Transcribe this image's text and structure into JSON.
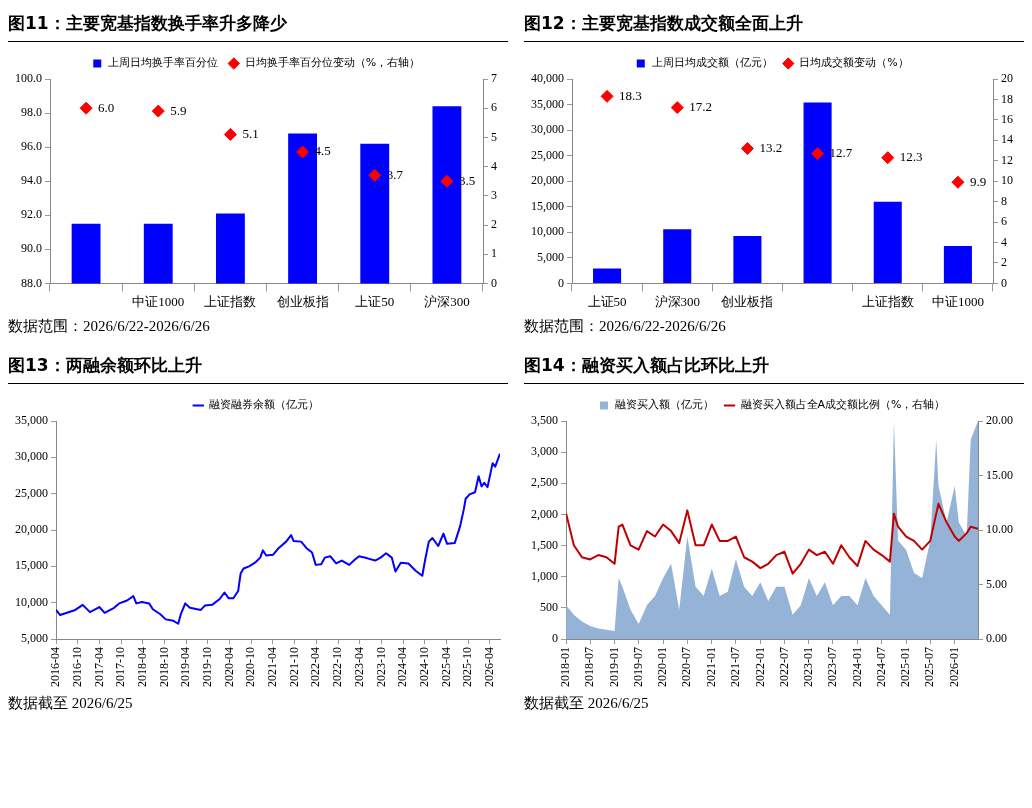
{
  "chart_data": [
    {
      "type": "bar",
      "title": "图11：主要宽基指数换手率升多降少",
      "categories": [
        null,
        "中证1000",
        "上证指数",
        "创业板指",
        "上证50",
        "沪深300"
      ],
      "series": [
        {
          "name": "上周日均换手率百分位",
          "color": "#0000ff",
          "values": [
            91.5,
            91.5,
            92.1,
            96.8,
            96.2,
            98.4
          ]
        },
        {
          "name": "日均换手率百分位变动（%，右轴）",
          "color": "#ff0000",
          "type": "scatter",
          "axis": "y2",
          "values": [
            6.0,
            5.9,
            5.1,
            4.5,
            3.7,
            3.5
          ],
          "value_labels": [
            "6.0",
            "5.9",
            "5.1",
            "4.5",
            "3.7",
            "3.5"
          ]
        }
      ],
      "ylim": [
        88,
        100
      ],
      "yticks": [
        {
          "value": 88,
          "label": "88.0"
        },
        {
          "value": 90,
          "label": "90.0"
        },
        {
          "value": 92,
          "label": "92.0"
        },
        {
          "value": 94,
          "label": "94.0"
        },
        {
          "value": 96,
          "label": "96.0"
        },
        {
          "value": 98,
          "label": "98.0"
        },
        {
          "value": 100,
          "label": "100.0"
        }
      ],
      "y2lim": [
        0,
        7
      ],
      "y2ticks": [
        {
          "value": 0,
          "label": "0"
        },
        1,
        2,
        3,
        4,
        5,
        6,
        7
      ],
      "marker": "diamond",
      "legend": "top",
      "grid": false,
      "annotations": [
        "数据范围：2026/6/22-2026/6/26"
      ]
    },
    {
      "type": "bar",
      "title": "图12：主要宽基指数成交额全面上升",
      "categories": [
        "上证50",
        "沪深300",
        "创业板指",
        null,
        "上证指数",
        "中证1000"
      ],
      "series": [
        {
          "name": "上周日均成交额（亿元）",
          "color": "#0000ff",
          "values": [
            2900,
            10600,
            9300,
            35400,
            16000,
            7300
          ]
        },
        {
          "name": "日均成交额变动（%）",
          "color": "#ff0000",
          "type": "scatter",
          "axis": "y2",
          "values": [
            18.3,
            17.2,
            13.2,
            12.7,
            12.3,
            9.9
          ],
          "value_labels": [
            "18.3",
            "17.2",
            "13.2",
            "12.7",
            "12.3",
            "9.9"
          ]
        }
      ],
      "ylim": [
        0,
        40000
      ],
      "yticks": [
        {
          "value": 0,
          "label": "0"
        },
        {
          "value": 5000,
          "label": "5,000"
        },
        {
          "value": 10000,
          "label": "10,000"
        },
        {
          "value": 15000,
          "label": "15,000"
        },
        {
          "value": 20000,
          "label": "20,000"
        },
        {
          "value": 25000,
          "label": "25,000"
        },
        {
          "value": 30000,
          "label": "30,000"
        },
        {
          "value": 35000,
          "label": "35,000"
        },
        {
          "value": 40000,
          "label": "40,000"
        }
      ],
      "y2lim": [
        0,
        20
      ],
      "y2ticks": [
        {
          "value": 0,
          "label": "0"
        },
        2,
        4,
        6,
        8,
        10,
        12,
        14,
        16,
        18,
        20
      ],
      "marker": "diamond",
      "legend": "top",
      "grid": false,
      "annotations": [
        "数据范围：2026/6/22-2026/6/26"
      ]
    },
    {
      "type": "line",
      "title": "图13：两融余额环比上升",
      "x": [
        "2016-04-01",
        "2016-05-06",
        "2016-09-10",
        "2016-11-12",
        "2017-01-12",
        "2017-04-01",
        "2017-05-15",
        "2017-08-03",
        "2017-09-15",
        "2017-11-20",
        "2018-01-12",
        "2018-02-06",
        "2018-03-25",
        "2018-05-25",
        "2018-06-25",
        "2018-08-27",
        "2018-10-12",
        "2018-12-15",
        "2019-01-25",
        "2019-02-15",
        "2019-03-25",
        "2019-05-03",
        "2019-08-03",
        "2019-09-06",
        "2019-11-06",
        "2020-01-09",
        "2020-02-18",
        "2020-03-25",
        "2020-05-03",
        "2020-06-12",
        "2020-07-03",
        "2020-07-28",
        "2020-09-12",
        "2020-11-01",
        "2020-12-15",
        "2021-01-06",
        "2021-02-03",
        "2021-04-03",
        "2021-05-18",
        "2021-07-21",
        "2021-09-01",
        "2021-09-21",
        "2021-11-24",
        "2022-01-09",
        "2022-02-24",
        "2022-03-27",
        "2022-05-12",
        "2022-06-12",
        "2022-07-27",
        "2022-09-15",
        "2022-11-01",
        "2023-01-03",
        "2023-02-18",
        "2023-03-27",
        "2023-06-06",
        "2023-08-09",
        "2023-09-24",
        "2023-11-09",
        "2023-12-27",
        "2024-01-27",
        "2024-03-12",
        "2024-05-15",
        "2024-07-15",
        "2024-09-09",
        "2024-10-03",
        "2024-11-03",
        "2024-12-03",
        "2025-01-21",
        "2025-03-06",
        "2025-04-06",
        "2025-06-09",
        "2025-07-24",
        "2025-08-24",
        "2025-09-09",
        "2025-10-12",
        "2025-11-27",
        "2025-12-27",
        "2026-01-21",
        "2026-02-12",
        "2026-03-12",
        "2026-04-24",
        "2026-05-15",
        "2026-06-25"
      ],
      "series": [
        {
          "name": "融资融券余额（亿元）",
          "color": "#0000ff",
          "values": [
            9000,
            8300,
            9000,
            9700,
            8700,
            9400,
            8600,
            9300,
            9900,
            10300,
            10900,
            9900,
            10100,
            9900,
            9100,
            8400,
            7700,
            7500,
            7100,
            8400,
            9900,
            9300,
            9000,
            9600,
            9700,
            10500,
            11400,
            10600,
            10600,
            11600,
            14000,
            14700,
            15000,
            15500,
            16200,
            17200,
            16500,
            16600,
            17500,
            18400,
            19300,
            18500,
            18400,
            17500,
            16900,
            15200,
            15300,
            16200,
            16400,
            15400,
            15800,
            15200,
            15900,
            16400,
            16100,
            15800,
            16200,
            16800,
            16200,
            14300,
            15500,
            15400,
            14400,
            13700,
            15900,
            18400,
            18900,
            17800,
            19500,
            18100,
            18200,
            20500,
            22800,
            24300,
            24900,
            25200,
            27400,
            26000,
            26500,
            25900,
            29200,
            28700,
            30500
          ]
        }
      ],
      "xlim": [
        "2016-04-01",
        "2026-06-25"
      ],
      "xticks": [
        "2016-04",
        "2016-10",
        "2017-04",
        "2017-10",
        "2018-04",
        "2018-10",
        "2019-04",
        "2019-10",
        "2020-04",
        "2020-10",
        "2021-04",
        "2021-10",
        "2022-04",
        "2022-10",
        "2023-04",
        "2023-10",
        "2024-04",
        "2024-10",
        "2025-04",
        "2025-10",
        "2026-04"
      ],
      "ylim": [
        5000,
        35000
      ],
      "yticks": [
        {
          "value": 5000,
          "label": "5,000"
        },
        {
          "value": 10000,
          "label": "10,000"
        },
        {
          "value": 15000,
          "label": "15,000"
        },
        {
          "value": 20000,
          "label": "20,000"
        },
        {
          "value": 25000,
          "label": "25,000"
        },
        {
          "value": 30000,
          "label": "30,000"
        },
        {
          "value": 35000,
          "label": "35,000"
        }
      ],
      "legend": "top",
      "grid": false,
      "annotations": [
        "数据截至 2026/6/25"
      ]
    },
    {
      "type": "line",
      "title": "图14：融资买入额占比环比上升",
      "x": [
        "2018-01-02",
        "2018-03-01",
        "2018-05-01",
        "2018-07-01",
        "2018-09-01",
        "2018-11-01",
        "2019-01-01",
        "2019-02-01",
        "2019-03-01",
        "2019-05-01",
        "2019-07-01",
        "2019-09-01",
        "2019-11-01",
        "2020-01-01",
        "2020-03-01",
        "2020-05-01",
        "2020-07-01",
        "2020-09-01",
        "2020-11-01",
        "2021-01-01",
        "2021-03-01",
        "2021-05-01",
        "2021-07-01",
        "2021-09-01",
        "2021-11-01",
        "2022-01-01",
        "2022-03-01",
        "2022-05-01",
        "2022-07-01",
        "2022-09-01",
        "2022-11-01",
        "2023-01-01",
        "2023-03-01",
        "2023-05-01",
        "2023-07-01",
        "2023-09-01",
        "2023-11-01",
        "2024-01-01",
        "2024-03-01",
        "2024-05-01",
        "2024-07-01",
        "2024-09-01",
        "2024-10-01",
        "2024-11-01",
        "2025-01-01",
        "2025-03-01",
        "2025-05-01",
        "2025-07-01",
        "2025-08-15",
        "2025-09-01",
        "2025-11-01",
        "2026-01-01",
        "2026-02-01",
        "2026-04-01",
        "2026-05-01",
        "2026-06-25"
      ],
      "series": [
        {
          "name": "融资买入额（亿元）",
          "color": "#95b3d7",
          "type": "area",
          "values": [
            540,
            390,
            280,
            210,
            170,
            150,
            130,
            980,
            840,
            470,
            240,
            540,
            690,
            980,
            1210,
            470,
            1650,
            840,
            690,
            1130,
            690,
            760,
            1280,
            840,
            690,
            910,
            610,
            840,
            840,
            390,
            540,
            980,
            690,
            910,
            540,
            690,
            690,
            540,
            980,
            690,
            540,
            390,
            3500,
            1580,
            1430,
            1060,
            980,
            1580,
            3200,
            2460,
            1870,
            2460,
            1870,
            1650,
            3200,
            3500
          ]
        },
        {
          "name": "融资买入额占全A成交额比例（%，右轴）",
          "color": "#c00000",
          "type": "line",
          "axis": "y2",
          "values": [
            11.5,
            8.6,
            7.5,
            7.3,
            7.7,
            7.5,
            6.9,
            10.3,
            10.5,
            8.6,
            8.2,
            9.9,
            9.4,
            10.5,
            9.9,
            8.8,
            11.8,
            8.6,
            8.6,
            10.5,
            9.0,
            9.0,
            9.4,
            7.5,
            7.1,
            6.5,
            6.9,
            7.7,
            8.0,
            6.0,
            6.9,
            8.2,
            7.7,
            8.0,
            6.9,
            8.6,
            7.5,
            6.7,
            9.0,
            8.2,
            7.7,
            7.1,
            11.5,
            10.3,
            9.4,
            9.0,
            8.2,
            9.0,
            11.5,
            12.4,
            10.7,
            9.4,
            9.0,
            9.7,
            10.3,
            10.1
          ]
        }
      ],
      "xlim": [
        "2018-01-01",
        "2026-06-25"
      ],
      "xticks": [
        "2018-01",
        "2018-07",
        "2019-01",
        "2019-07",
        "2020-01",
        "2020-07",
        "2021-01",
        "2021-07",
        "2022-01",
        "2022-07",
        "2023-01",
        "2023-07",
        "2024-01",
        "2024-07",
        "2025-01",
        "2025-07",
        "2026-01"
      ],
      "ylim": [
        0,
        3500
      ],
      "yticks": [
        {
          "value": 0,
          "label": "0"
        },
        500,
        {
          "value": 1000,
          "label": "1,000"
        },
        {
          "value": 1500,
          "label": "1,500"
        },
        {
          "value": 2000,
          "label": "2,000"
        },
        {
          "value": 2500,
          "label": "2,500"
        },
        {
          "value": 3000,
          "label": "3,000"
        },
        {
          "value": 3500,
          "label": "3,500"
        }
      ],
      "y2lim": [
        0,
        20
      ],
      "y2ticks": [
        {
          "value": 0,
          "label": "0.00"
        },
        {
          "value": 5,
          "label": "5.00"
        },
        {
          "value": 10,
          "label": "10.00"
        },
        {
          "value": 15,
          "label": "15.00"
        },
        {
          "value": 20,
          "label": "20.00"
        }
      ],
      "legend": "top",
      "grid": false,
      "annotations": [
        "数据截至 2026/6/25"
      ]
    }
  ]
}
